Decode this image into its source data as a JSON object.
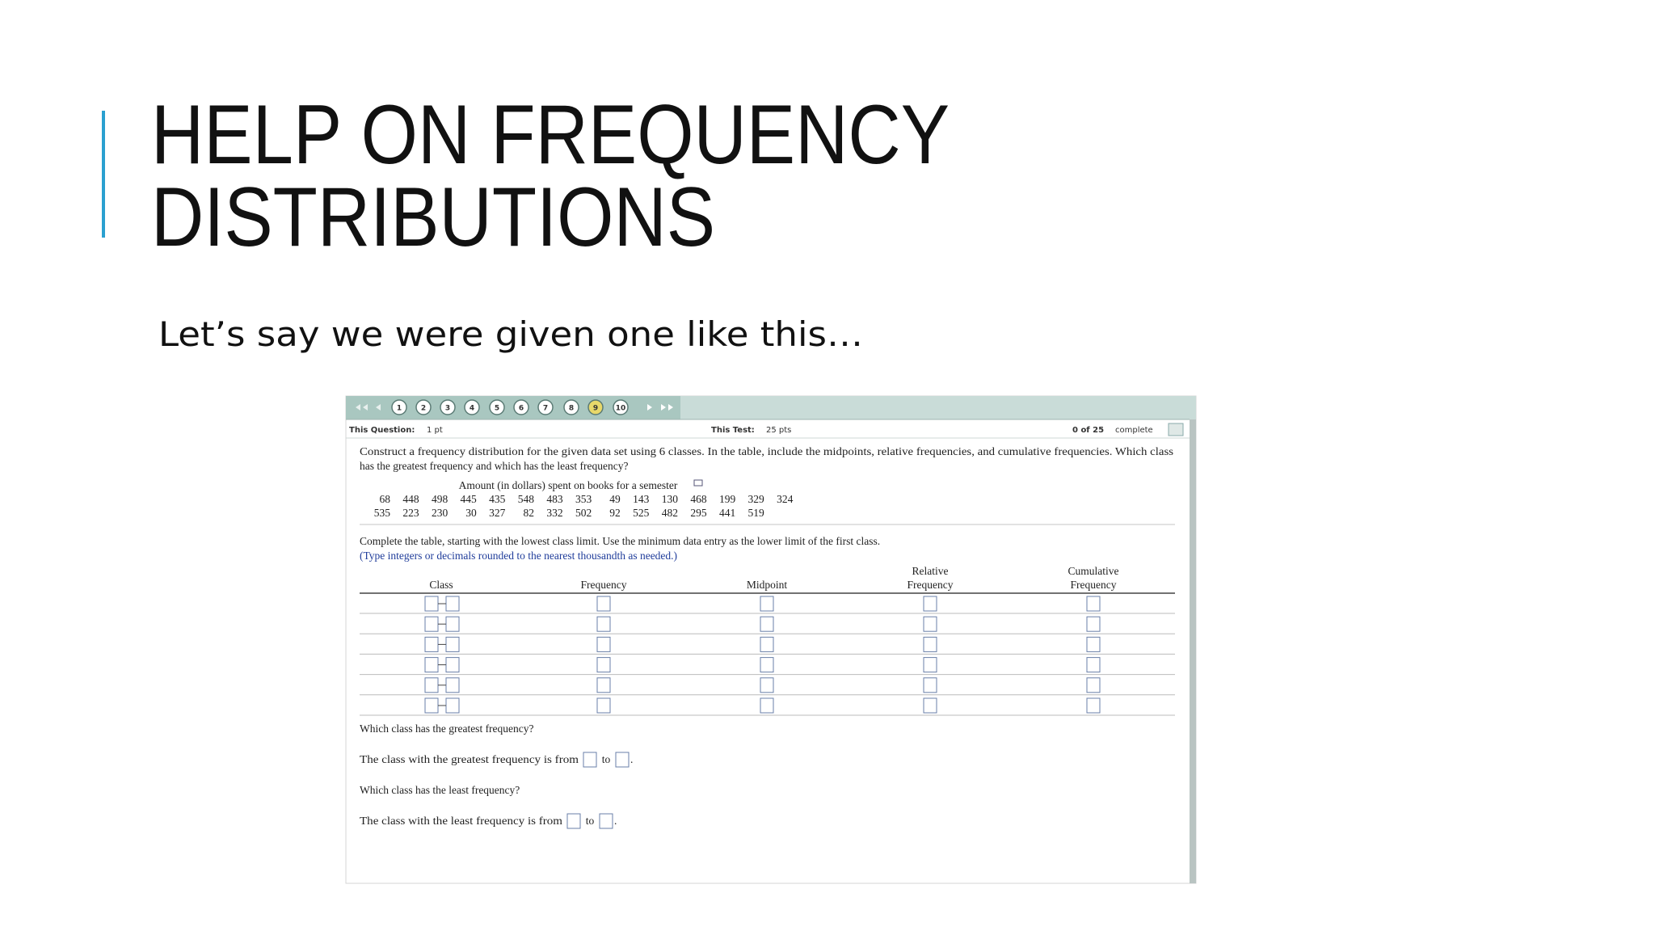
{
  "slide": {
    "title": [
      "HELP ON FREQUENCY",
      "DISTRIBUTIONS"
    ],
    "subtitle": "Let’s say we were given one like this…"
  },
  "screenshot": {
    "nav": [
      "1",
      "2",
      "3",
      "4",
      "5",
      "6",
      "7",
      "8",
      "9",
      "10"
    ],
    "info": {
      "question_label": "This Question:",
      "question_points": "1 pt",
      "test_label": "This Test:",
      "test_points": "25 pts",
      "progress": "0 of 25",
      "status": "complete"
    },
    "question": [
      "Construct a frequency distribution for the given data set using 6 classes. In the table, include the midpoints, relative frequencies, and cumulative frequencies. Which class",
      "has the greatest frequency and which has the least frequency?"
    ],
    "dataset": {
      "caption": "Amount (in dollars) spent on books for a semester",
      "rows": [
        [
          68,
          448,
          498,
          445,
          435,
          548,
          483,
          353,
          49,
          143,
          130,
          468,
          199,
          329,
          324
        ],
        [
          535,
          223,
          230,
          30,
          327,
          82,
          332,
          502,
          92,
          525,
          482,
          295,
          441,
          519
        ]
      ]
    },
    "instructions": "Complete the table, starting with the lowest class limit. Use the minimum data entry as the lower limit of the first class.",
    "hint": "(Type integers or decimals rounded to the nearest thousandth as needed.)",
    "table": {
      "headers": [
        [
          "Class"
        ],
        [
          "Frequency"
        ],
        [
          "Midpoint"
        ],
        [
          "Relative",
          "Frequency"
        ],
        [
          "Cumulative",
          "Frequency"
        ]
      ]
    },
    "followups": [
      {
        "question": "Which class has the greatest frequency?",
        "answer": [
          "The class with the greatest frequency is from",
          "to",
          "."
        ]
      },
      {
        "question": "Which class has the least frequency?",
        "answer": [
          "The class with the least frequency is from",
          "to",
          "."
        ]
      }
    ]
  }
}
